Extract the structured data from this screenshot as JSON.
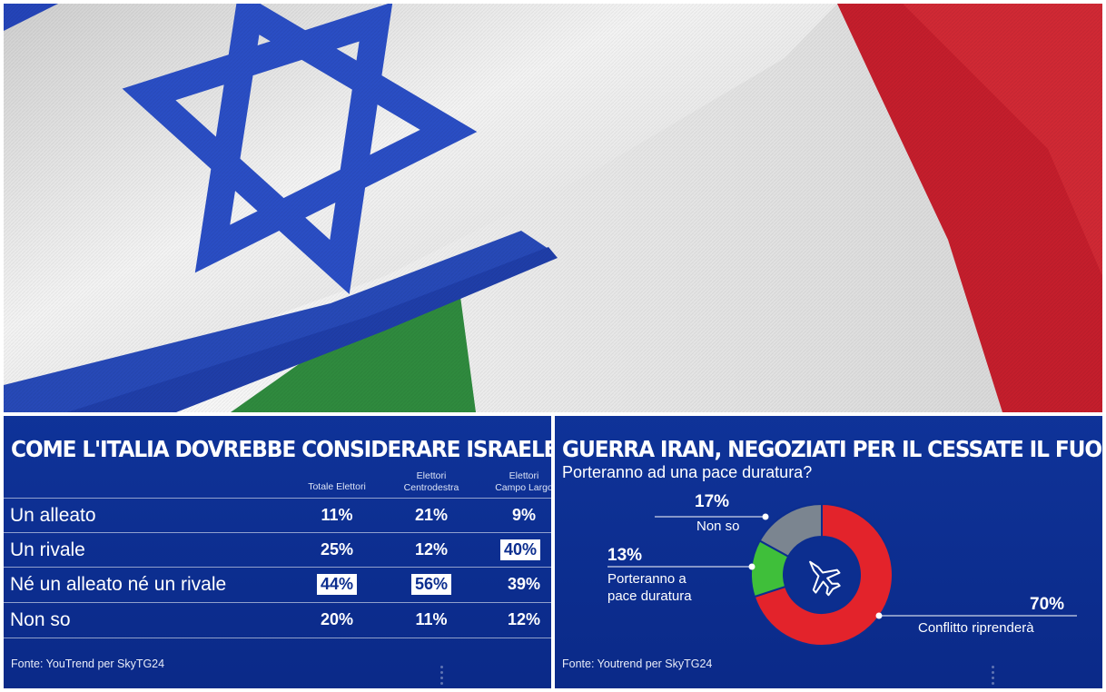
{
  "photo": {
    "icon": "israel-italy-flags"
  },
  "left_panel": {
    "title": "COME L'ITALIA DOVREBBE CONSIDERARE ISRAELE?",
    "col1": "Totale Elettori",
    "col2a": "Elettori",
    "col2b": "Centrodestra",
    "col3a": "Elettori",
    "col3b": "Campo Largo",
    "source": "Fonte: YouTrend per SkyTG24",
    "rows": [
      {
        "label": "Un alleato",
        "v1": "11%",
        "v2": "21%",
        "v3": "9%"
      },
      {
        "label": "Un rivale",
        "v1": "25%",
        "v2": "12%",
        "v3": "40%"
      },
      {
        "label": "Né un alleato né un rivale",
        "v1": "44%",
        "v2": "56%",
        "v3": "39%"
      },
      {
        "label": "Non so",
        "v1": "20%",
        "v2": "11%",
        "v3": "12%"
      }
    ]
  },
  "right_panel": {
    "title": "GUERRA IRAN, NEGOZIATI PER IL CESSATE IL FUOCO",
    "subtitle": "Porteranno ad una pace duratura?",
    "source": "Fonte: Youtrend per SkyTG24",
    "center_icon": "fighter-jet-icon",
    "labels": {
      "nonso_pct": "17%",
      "nonso": "Non so",
      "pace_pct": "13%",
      "pace_1": "Porteranno a",
      "pace_2": "pace duratura",
      "conf_pct": "70%",
      "conf": "Conflitto riprenderà"
    }
  },
  "chart_data": [
    {
      "type": "table",
      "title": "COME L'ITALIA DOVREBBE CONSIDERARE ISRAELE?",
      "categories": [
        "Un alleato",
        "Un rivale",
        "Né un alleato né un rivale",
        "Non so"
      ],
      "series": [
        {
          "name": "Totale Elettori",
          "values": [
            11,
            25,
            44,
            20
          ]
        },
        {
          "name": "Elettori Centrodestra",
          "values": [
            21,
            12,
            56,
            11
          ]
        },
        {
          "name": "Elettori Campo Largo",
          "values": [
            9,
            40,
            39,
            12
          ]
        }
      ],
      "highlighted": [
        "Totale Elettori|Né un alleato né un rivale",
        "Elettori Centrodestra|Né un alleato né un rivale",
        "Elettori Campo Largo|Un rivale"
      ]
    },
    {
      "type": "pie",
      "title": "GUERRA IRAN, NEGOZIATI PER IL CESSATE IL FUOCO",
      "subtitle": "Porteranno ad una pace duratura?",
      "categories": [
        "Conflitto riprenderà",
        "Porteranno a pace duratura",
        "Non so"
      ],
      "values": [
        70,
        13,
        17
      ],
      "colors": [
        "#e3232b",
        "#3fbf3a",
        "#7b8590"
      ],
      "donut": true
    }
  ]
}
